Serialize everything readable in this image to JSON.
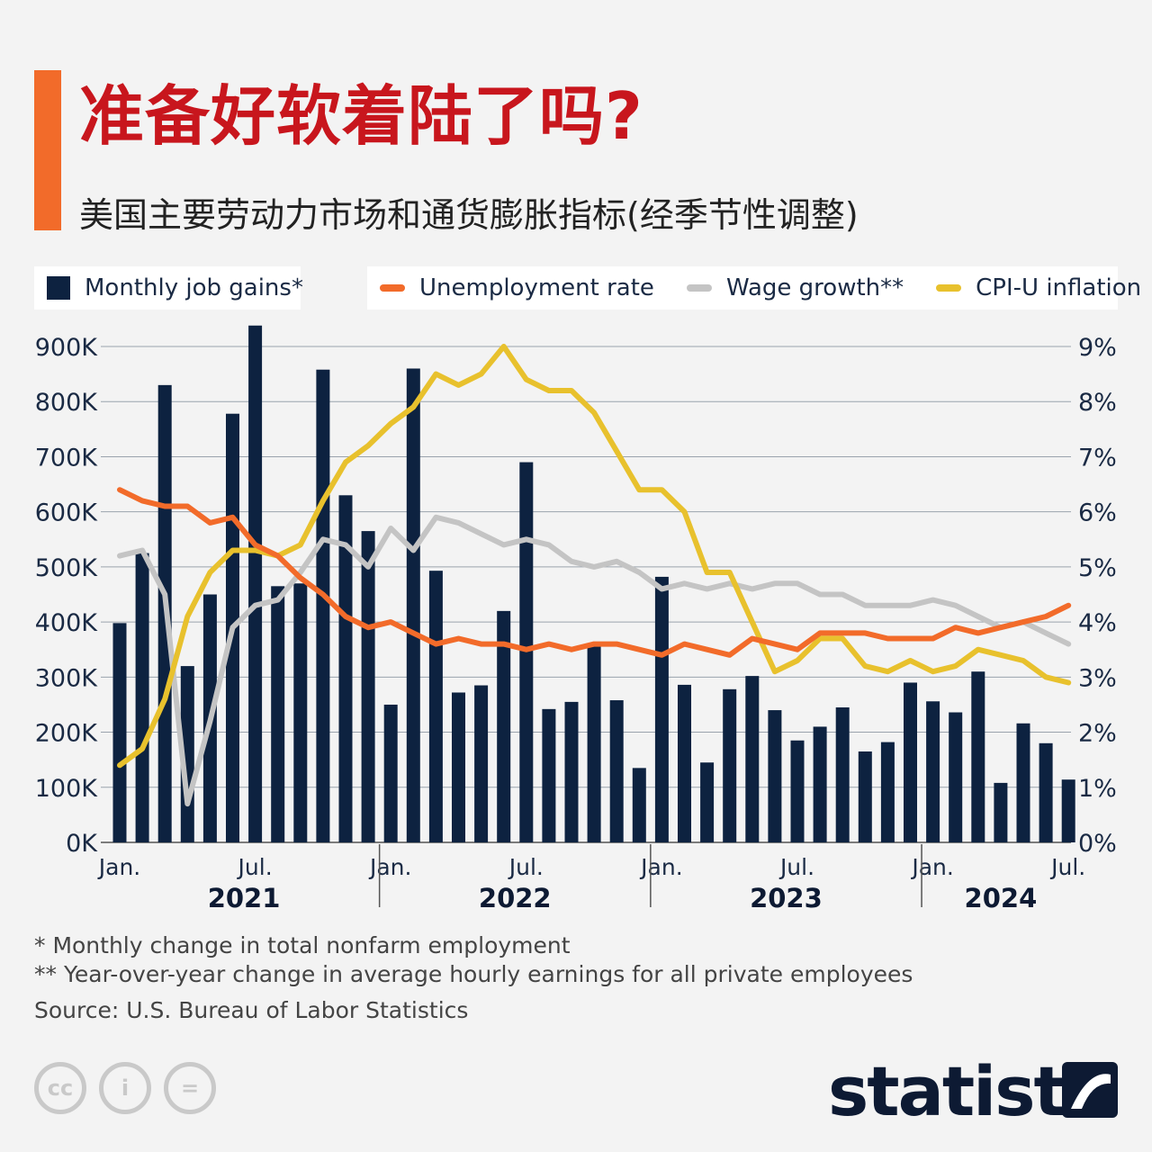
{
  "title": "准备好软着陆了吗?",
  "subtitle": "美国主要劳动力市场和通货膨胀指标(经季节性调整)",
  "legend": {
    "job_gains": "Monthly job gains*",
    "unemployment": "Unemployment rate",
    "wage": "Wage growth**",
    "cpi": "CPI-U inflation"
  },
  "colors": {
    "bars": "#0d2240",
    "unemployment": "#f26b2a",
    "wage": "#c4c4c4",
    "cpi": "#e8c12d",
    "title": "#c8161d",
    "accent": "#f26b2a"
  },
  "footnotes": {
    "note1": "*   Monthly change in total nonfarm employment",
    "note2": "** Year-over-year change in average hourly earnings for all private employees",
    "source": "Source: U.S. Bureau of Labor Statistics"
  },
  "branding": {
    "logo": "statista",
    "cc_icons": [
      "cc",
      "i",
      "="
    ]
  },
  "chart_data": {
    "type": "bar",
    "months": [
      "2021-01",
      "2021-02",
      "2021-03",
      "2021-04",
      "2021-05",
      "2021-06",
      "2021-07",
      "2021-08",
      "2021-09",
      "2021-10",
      "2021-11",
      "2021-12",
      "2022-01",
      "2022-02",
      "2022-03",
      "2022-04",
      "2022-05",
      "2022-06",
      "2022-07",
      "2022-08",
      "2022-09",
      "2022-10",
      "2022-11",
      "2022-12",
      "2023-01",
      "2023-02",
      "2023-03",
      "2023-04",
      "2023-05",
      "2023-06",
      "2023-07",
      "2023-08",
      "2023-09",
      "2023-10",
      "2023-11",
      "2023-12",
      "2024-01",
      "2024-02",
      "2024-03",
      "2024-04",
      "2024-05",
      "2024-06",
      "2024-07"
    ],
    "x_tick_labels": [
      {
        "index": 0,
        "label": "Jan."
      },
      {
        "index": 6,
        "label": "Jul."
      },
      {
        "index": 12,
        "label": "Jan."
      },
      {
        "index": 18,
        "label": "Jul."
      },
      {
        "index": 24,
        "label": "Jan."
      },
      {
        "index": 30,
        "label": "Jul."
      },
      {
        "index": 36,
        "label": "Jan."
      },
      {
        "index": 42,
        "label": "Jul."
      }
    ],
    "years": [
      {
        "label": "2021",
        "start": 0,
        "end": 11
      },
      {
        "label": "2022",
        "start": 12,
        "end": 23
      },
      {
        "label": "2023",
        "start": 24,
        "end": 35
      },
      {
        "label": "2024",
        "start": 36,
        "end": 42
      }
    ],
    "left_axis": {
      "min": 0,
      "max": 900000,
      "ticks": [
        "0K",
        "100K",
        "200K",
        "300K",
        "400K",
        "500K",
        "600K",
        "700K",
        "800K",
        "900K"
      ]
    },
    "right_axis": {
      "min": 0,
      "max": 9,
      "ticks": [
        "0%",
        "1%",
        "2%",
        "3%",
        "4%",
        "5%",
        "6%",
        "7%",
        "8%",
        "9%"
      ]
    },
    "series": [
      {
        "name": "Monthly job gains*",
        "type": "bar",
        "axis": "left",
        "values": [
          398000,
          525000,
          830000,
          320000,
          450000,
          778000,
          938000,
          465000,
          470000,
          858000,
          630000,
          565000,
          250000,
          860000,
          493000,
          272000,
          285000,
          420000,
          690000,
          242000,
          255000,
          360000,
          258000,
          135000,
          482000,
          286000,
          145000,
          278000,
          302000,
          240000,
          185000,
          210000,
          245000,
          165000,
          182000,
          290000,
          256000,
          236000,
          310000,
          108000,
          216000,
          180000,
          114000
        ]
      },
      {
        "name": "Unemployment rate",
        "type": "line",
        "axis": "right",
        "values": [
          6.4,
          6.2,
          6.1,
          6.1,
          5.8,
          5.9,
          5.4,
          5.2,
          4.8,
          4.5,
          4.1,
          3.9,
          4.0,
          3.8,
          3.6,
          3.7,
          3.6,
          3.6,
          3.5,
          3.6,
          3.5,
          3.6,
          3.6,
          3.5,
          3.4,
          3.6,
          3.5,
          3.4,
          3.7,
          3.6,
          3.5,
          3.8,
          3.8,
          3.8,
          3.7,
          3.7,
          3.7,
          3.9,
          3.8,
          3.9,
          4.0,
          4.1,
          4.3
        ]
      },
      {
        "name": "Wage growth**",
        "type": "line",
        "axis": "right",
        "values": [
          5.2,
          5.3,
          4.5,
          0.7,
          2.2,
          3.9,
          4.3,
          4.4,
          4.9,
          5.5,
          5.4,
          5.0,
          5.7,
          5.3,
          5.9,
          5.8,
          5.6,
          5.4,
          5.5,
          5.4,
          5.1,
          5.0,
          5.1,
          4.9,
          4.6,
          4.7,
          4.6,
          4.7,
          4.6,
          4.7,
          4.7,
          4.5,
          4.5,
          4.3,
          4.3,
          4.3,
          4.4,
          4.3,
          4.1,
          3.9,
          4.0,
          3.8,
          3.6
        ]
      },
      {
        "name": "CPI-U inflation",
        "type": "line",
        "axis": "right",
        "values": [
          1.4,
          1.7,
          2.6,
          4.1,
          4.9,
          5.3,
          5.3,
          5.2,
          5.4,
          6.2,
          6.9,
          7.2,
          7.6,
          7.9,
          8.5,
          8.3,
          8.5,
          9.0,
          8.4,
          8.2,
          8.2,
          7.8,
          7.1,
          6.4,
          6.4,
          6.0,
          4.9,
          4.9,
          4.0,
          3.1,
          3.3,
          3.7,
          3.7,
          3.2,
          3.1,
          3.3,
          3.1,
          3.2,
          3.5,
          3.4,
          3.3,
          3.0,
          2.9
        ]
      }
    ]
  }
}
